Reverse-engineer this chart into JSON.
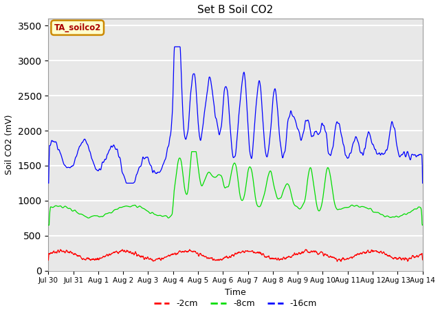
{
  "title": "Set B Soil CO2",
  "xlabel": "Time",
  "ylabel": "Soil CO2 (mV)",
  "ylim": [
    0,
    3600
  ],
  "yticks": [
    0,
    500,
    1000,
    1500,
    2000,
    2500,
    3000,
    3500
  ],
  "annotation": "TA_soilco2",
  "annotation_color": "#aa0000",
  "annotation_bg": "#ffffcc",
  "annotation_border": "#cc8800",
  "plot_bg": "#e8e8e8",
  "colors": {
    "2cm": "#ff0000",
    "8cm": "#00dd00",
    "16cm": "#0000ff"
  },
  "legend": [
    "-2cm",
    "-8cm",
    "-16cm"
  ],
  "tick_labels": [
    "Jul 30",
    "Jul 31",
    "Aug 1",
    "Aug 2",
    "Aug 3",
    "Aug 4",
    "Aug 5",
    "Aug 6",
    "Aug 7",
    "Aug 8",
    "Aug 9",
    "Aug 10",
    "Aug 11",
    "Aug 12",
    "Aug 13",
    "Aug 14"
  ],
  "n_points": 1500,
  "n_days": 15
}
